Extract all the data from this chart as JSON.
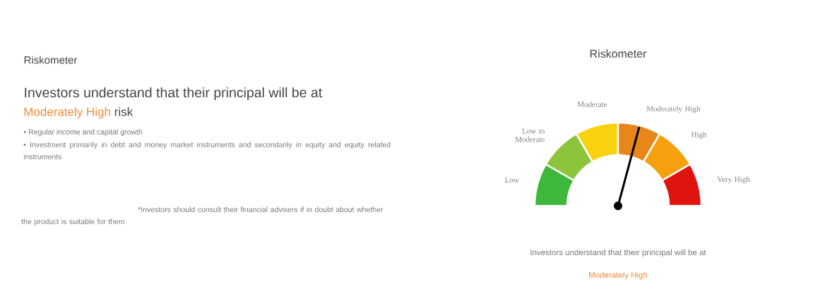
{
  "chart_data": {
    "type": "donut",
    "title": "Riskometer",
    "categories": [
      "Low",
      "Low to Moderate",
      "Moderate",
      "Moderately High",
      "High",
      "Very High"
    ],
    "values": [
      16.67,
      16.67,
      16.67,
      16.67,
      16.66,
      16.66
    ],
    "colors": [
      "#3db83a",
      "#8cc43c",
      "#f8d20f",
      "#e8861a",
      "#f5a00c",
      "#e0140f"
    ],
    "needle": "Moderately High",
    "annotations": [
      "Riskometer",
      "Investors understand that their principal will be at",
      "Moderately High",
      "risk",
      "• Regular income and capital growth",
      "• Investment primarily in debt and money market instruments and secondarily in equity and equity related instruments",
      "*Investors should consult their financial advisers if in doubt about whether the product is suitable for them",
      "Investors understand that their principal will be at",
      "Moderately High"
    ]
  }
}
